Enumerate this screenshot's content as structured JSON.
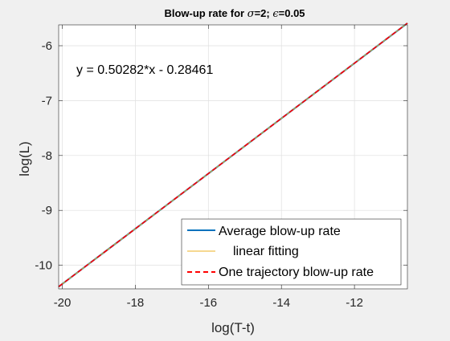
{
  "chart_data": {
    "type": "line",
    "title_prefix": "Blow-up rate for ",
    "title_sigma_symbol": "σ",
    "title_sigma_value": "=2; ",
    "title_eps_symbol": "ϵ",
    "title_eps_value": "=0.05",
    "xlabel": "log(T-t)",
    "ylabel": "log(L)",
    "xlim": [
      -20.1,
      -10.55
    ],
    "ylim": [
      -10.43,
      -5.62
    ],
    "xticks": [
      -20,
      -18,
      -16,
      -14,
      -12
    ],
    "yticks": [
      -10,
      -9,
      -8,
      -7,
      -6
    ],
    "xtick_labels": [
      "-20",
      "-18",
      "-16",
      "-14",
      "-12"
    ],
    "ytick_labels": [
      "-10",
      "-9",
      "-8",
      "-7",
      "-6"
    ],
    "grid": true,
    "legend_position": "bottom-right",
    "annotation": "y = 0.50282*x - 0.28461",
    "series": [
      {
        "name": "Average blow-up rate",
        "color": "#0072bd",
        "style": "solid",
        "x": [
          -20.1,
          -10.55
        ],
        "y": [
          -10.39,
          -5.59
        ]
      },
      {
        "name": "linear fitting",
        "color": "#edb120",
        "style": "solid",
        "x": [
          -20.1,
          -10.55
        ],
        "y": [
          -10.39,
          -5.59
        ]
      },
      {
        "name": "One trajectory blow-up rate",
        "color": "#ff0000",
        "style": "dashed",
        "x": [
          -20.1,
          -10.55
        ],
        "y": [
          -10.39,
          -5.59
        ]
      }
    ]
  }
}
